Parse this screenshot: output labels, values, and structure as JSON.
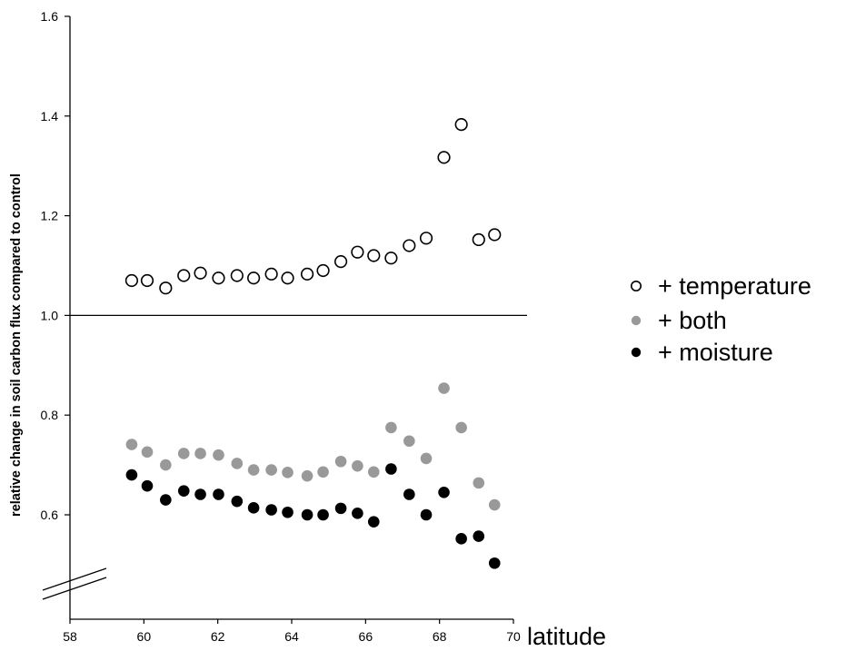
{
  "chart_data": {
    "type": "scatter",
    "xlabel": "latitude",
    "ylabel": "relative change in soil carbon flux compared to control",
    "title": "",
    "xlim": [
      58,
      70
    ],
    "ylim": [
      0.5,
      1.6
    ],
    "y_axis_break": true,
    "reference_line_y": 1.0,
    "x_ticks": [
      "58",
      "60",
      "62",
      "64",
      "66",
      "68",
      "70"
    ],
    "y_ticks": [
      "0.6",
      "0.8",
      "1.0",
      "1.2",
      "1.4",
      "1.6"
    ],
    "grid": false,
    "legend_position": "right",
    "series": [
      {
        "name": "+ temperature",
        "marker": "open-circle",
        "color": "#000000",
        "x": [
          59.67,
          60.09,
          60.59,
          61.08,
          61.53,
          62.02,
          62.52,
          62.97,
          63.45,
          63.89,
          64.42,
          64.85,
          65.33,
          65.78,
          66.22,
          66.69,
          67.18,
          67.64,
          68.12,
          68.59,
          69.06,
          69.49
        ],
        "y": [
          1.07,
          1.07,
          1.055,
          1.08,
          1.085,
          1.075,
          1.08,
          1.075,
          1.083,
          1.075,
          1.083,
          1.09,
          1.108,
          1.127,
          1.12,
          1.115,
          1.14,
          1.155,
          1.317,
          1.383,
          1.152,
          1.162
        ]
      },
      {
        "name": "+ both",
        "marker": "filled-circle",
        "color": "#999999",
        "x": [
          59.67,
          60.09,
          60.59,
          61.08,
          61.53,
          62.02,
          62.52,
          62.97,
          63.45,
          63.89,
          64.42,
          64.85,
          65.33,
          65.78,
          66.22,
          66.69,
          67.18,
          67.64,
          68.12,
          68.59,
          69.06,
          69.49
        ],
        "y": [
          0.741,
          0.726,
          0.7,
          0.723,
          0.723,
          0.72,
          0.703,
          0.69,
          0.69,
          0.685,
          0.678,
          0.686,
          0.707,
          0.698,
          0.686,
          0.775,
          0.748,
          0.713,
          0.854,
          0.775,
          0.664,
          0.62
        ]
      },
      {
        "name": "+ moisture",
        "marker": "filled-circle",
        "color": "#000000",
        "x": [
          59.67,
          60.09,
          60.59,
          61.08,
          61.53,
          62.02,
          62.52,
          62.97,
          63.45,
          63.89,
          64.42,
          64.85,
          65.33,
          65.78,
          66.22,
          66.69,
          67.18,
          67.64,
          68.12,
          68.59,
          69.06,
          69.49
        ],
        "y": [
          0.68,
          0.658,
          0.63,
          0.648,
          0.641,
          0.641,
          0.627,
          0.614,
          0.61,
          0.605,
          0.6,
          0.6,
          0.613,
          0.603,
          0.586,
          0.692,
          0.641,
          0.6,
          0.645,
          0.552,
          0.557,
          0.503
        ]
      }
    ]
  }
}
